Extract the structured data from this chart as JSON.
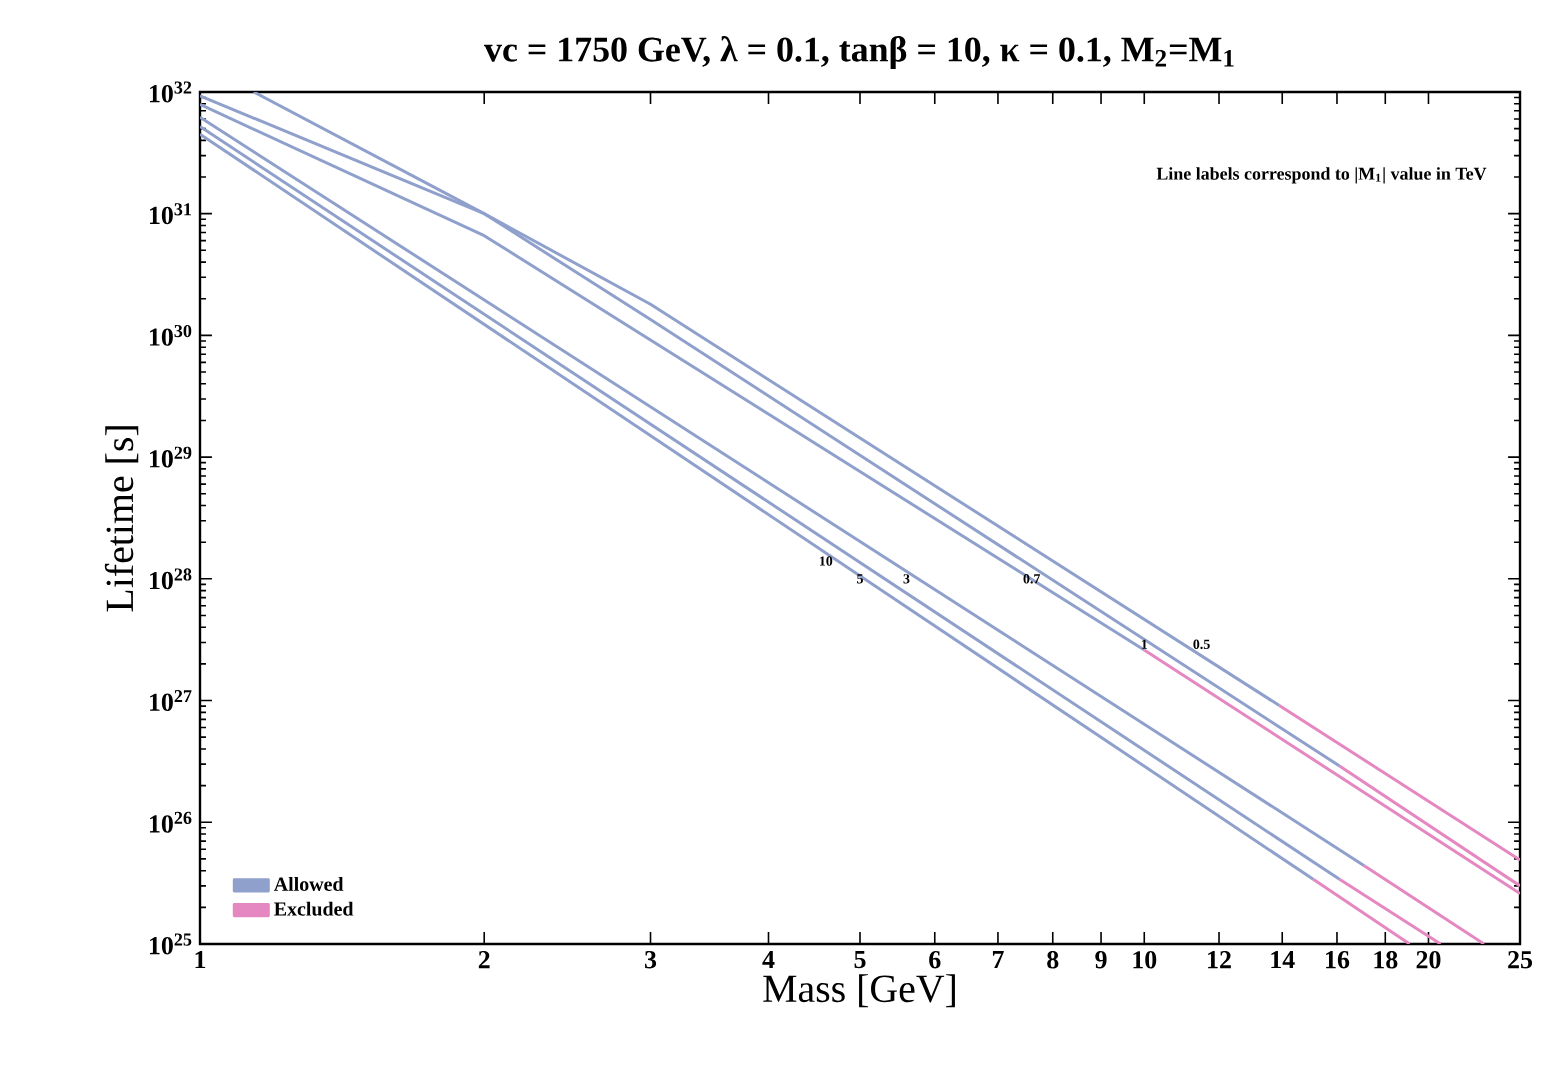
{
  "chart_data": {
    "type": "line",
    "title": "vc = 1750 GeV, λ = 0.1, tanβ = 10, κ = 0.1, M$_{2}$=M$_{1}$",
    "xlabel": "Mass [GeV]",
    "ylabel": "Lifetime [s]",
    "log": "xy",
    "legend": "bottom left",
    "xlim": [
      1,
      25
    ],
    "ylim": [
      1e+25,
      1e+32
    ],
    "xticks": [
      1,
      2,
      3,
      4,
      5,
      6,
      7,
      8,
      9,
      10,
      12,
      14,
      16,
      18,
      20,
      25
    ],
    "yticks": [
      {
        "value": 1e+25,
        "label": "10$^{25}$"
      },
      {
        "value": 1e+26,
        "label": "10$^{26}$"
      },
      {
        "value": 1e+27,
        "label": "10$^{27}$"
      },
      {
        "value": 1e+28,
        "label": "10$^{28}$"
      },
      {
        "value": 1e+29,
        "label": "10$^{29}$"
      },
      {
        "value": 1e+30,
        "label": "10$^{30}$"
      },
      {
        "value": 1e+31,
        "label": "10$^{31}$"
      },
      {
        "value": 1e+32,
        "label": "10$^{32}$"
      }
    ],
    "series": [
      {
        "name": "Allowed",
        "color": "#8fa0cc",
        "x": [
          1.14,
          2,
          3,
          13.9
        ],
        "values": [
          1e+32,
          1e+31,
          1.8e+30,
          9.1e+26
        ]
      },
      {
        "name": "Excluded",
        "color": "#e587c0",
        "x": [
          13.9,
          25
        ],
        "values": [
          9.1e+26,
          4.9e+25
        ]
      },
      {
        "color": "#8fa0cc",
        "x": [
          1,
          2,
          3,
          16.1
        ],
        "values": [
          9.3e+31,
          1e+31,
          1.35e+30,
          2.9e+26
        ]
      },
      {
        "color": "#e587c0",
        "x": [
          16.1,
          25
        ],
        "values": [
          2.9e+26,
          3e+25
        ]
      },
      {
        "color": "#8fa0cc",
        "x": [
          1,
          2,
          10
        ],
        "values": [
          7.9e+31,
          6.6e+30,
          2.6e+27
        ]
      },
      {
        "color": "#e587c0",
        "x": [
          10,
          25
        ],
        "values": [
          2.6e+27,
          2.6e+25
        ]
      },
      {
        "color": "#8fa0cc",
        "x": [
          1,
          17.1
        ],
        "values": [
          6.2e+31,
          4.4e+25
        ]
      },
      {
        "color": "#e587c0",
        "x": [
          17.1,
          22.9
        ],
        "values": [
          4.4e+25,
          1e+25
        ]
      },
      {
        "color": "#8fa0cc",
        "x": [
          1,
          16.1
        ],
        "values": [
          5.2e+31,
          3.4e+25
        ]
      },
      {
        "color": "#e587c0",
        "x": [
          16.1,
          20.6
        ],
        "values": [
          3.4e+25,
          1e+25
        ]
      },
      {
        "color": "#8fa0cc",
        "x": [
          1,
          15.1
        ],
        "values": [
          4.5e+31,
          3.4e+25
        ]
      },
      {
        "color": "#e587c0",
        "x": [
          15.1,
          19.1
        ],
        "values": [
          3.4e+25,
          1e+25
        ]
      }
    ],
    "annotations": [
      "Line labels correspond to |M$_{1}$| value in TeV",
      {
        "text": "10",
        "x": 4.6,
        "y": 1.4e+28
      },
      {
        "text": "5",
        "x": 5.0,
        "y": 1e+28
      },
      {
        "text": "3",
        "x": 5.6,
        "y": 1e+28
      },
      {
        "text": "0.7",
        "x": 7.6,
        "y": 1e+28
      },
      {
        "text": "1",
        "x": 10,
        "y": 2.9e+27
      },
      {
        "text": "0.5",
        "x": 11.5,
        "y": 2.9e+27
      }
    ]
  }
}
